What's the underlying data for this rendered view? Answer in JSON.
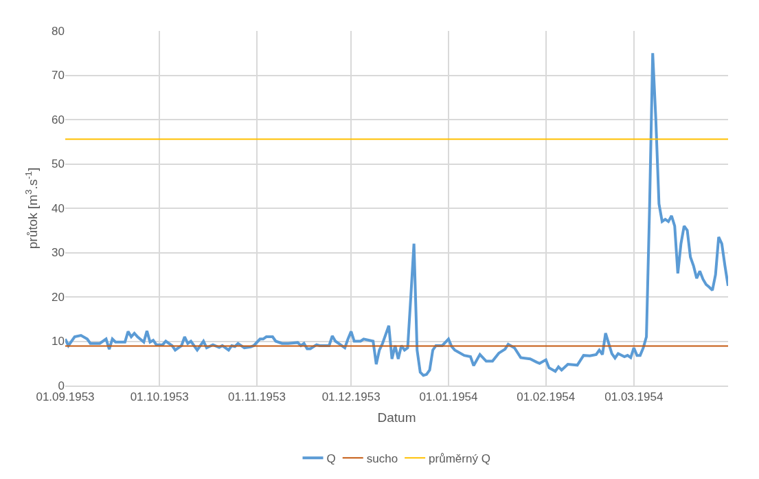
{
  "chart_data": {
    "type": "line",
    "xlabel": "Datum",
    "ylabel": "průtok [m$^{3}$.s$^{-1}$]",
    "xlim": [
      "1953-09-01",
      "1954-03-31"
    ],
    "ylim": [
      0,
      80
    ],
    "yticks": [
      0,
      10,
      20,
      30,
      40,
      50,
      60,
      70,
      80
    ],
    "xticks": [
      {
        "value": "1953-09-01",
        "label": "01.09.1953"
      },
      {
        "value": "1953-10-01",
        "label": "01.10.1953"
      },
      {
        "value": "1953-11-01",
        "label": "01.11.1953"
      },
      {
        "value": "1953-12-01",
        "label": "01.12.1953"
      },
      {
        "value": "1954-01-01",
        "label": "01.01.1954"
      },
      {
        "value": "1954-02-01",
        "label": "01.02.1954"
      },
      {
        "value": "1954-03-01",
        "label": "01.03.1954"
      }
    ],
    "grid": true,
    "legend": "bottom",
    "marker": "none",
    "line_style": "solid",
    "series": [
      {
        "name": "Q",
        "color": "#5b9bd5",
        "x": [
          "1953-09-01",
          "1953-09-02",
          "1953-09-04",
          "1953-09-06",
          "1953-09-08",
          "1953-09-09",
          "1953-09-12",
          "1953-09-14",
          "1953-09-15",
          "1953-09-16",
          "1953-09-17",
          "1953-09-20",
          "1953-09-21",
          "1953-09-22",
          "1953-09-23",
          "1953-09-24",
          "1953-09-26",
          "1953-09-27",
          "1953-09-28",
          "1953-09-29",
          "1953-09-30",
          "1953-10-02",
          "1953-10-03",
          "1953-10-05",
          "1953-10-06",
          "1953-10-08",
          "1953-10-09",
          "1953-10-10",
          "1953-10-11",
          "1953-10-13",
          "1953-10-15",
          "1953-10-16",
          "1953-10-18",
          "1953-10-20",
          "1953-10-21",
          "1953-10-23",
          "1953-10-24",
          "1953-10-25",
          "1953-10-26",
          "1953-10-28",
          "1953-10-30",
          "1953-10-31",
          "1953-11-02",
          "1953-11-03",
          "1953-11-04",
          "1953-11-06",
          "1953-11-07",
          "1953-11-09",
          "1953-11-11",
          "1953-11-14",
          "1953-11-15",
          "1953-11-16",
          "1953-11-17",
          "1953-11-18",
          "1953-11-20",
          "1953-11-21",
          "1953-11-22",
          "1953-11-24",
          "1953-11-25",
          "1953-11-26",
          "1953-11-27",
          "1953-11-29",
          "1953-11-30",
          "1953-12-01",
          "1953-12-02",
          "1953-12-04",
          "1953-12-05",
          "1953-12-08",
          "1953-12-09",
          "1953-12-10",
          "1953-12-11",
          "1953-12-13",
          "1953-12-14",
          "1953-12-15",
          "1953-12-16",
          "1953-12-17",
          "1953-12-18",
          "1953-12-19",
          "1953-12-20",
          "1953-12-21",
          "1953-12-22",
          "1953-12-23",
          "1953-12-24",
          "1953-12-25",
          "1953-12-26",
          "1953-12-27",
          "1953-12-28",
          "1953-12-30",
          "1954-01-01",
          "1954-01-02",
          "1954-01-03",
          "1954-01-06",
          "1954-01-08",
          "1954-01-09",
          "1954-01-11",
          "1954-01-13",
          "1954-01-15",
          "1954-01-17",
          "1954-01-19",
          "1954-01-20",
          "1954-01-22",
          "1954-01-24",
          "1954-01-27",
          "1954-01-29",
          "1954-01-30",
          "1954-02-01",
          "1954-02-02",
          "1954-02-04",
          "1954-02-05",
          "1954-02-06",
          "1954-02-08",
          "1954-02-11",
          "1954-02-13",
          "1954-02-15",
          "1954-02-17",
          "1954-02-18",
          "1954-02-19",
          "1954-02-20",
          "1954-02-22",
          "1954-02-23",
          "1954-02-24",
          "1954-02-26",
          "1954-02-27",
          "1954-02-28",
          "1954-03-01",
          "1954-03-02",
          "1954-03-03",
          "1954-03-04",
          "1954-03-05",
          "1954-03-06",
          "1954-03-07",
          "1954-03-08",
          "1954-03-09",
          "1954-03-10",
          "1954-03-11",
          "1954-03-12",
          "1954-03-13",
          "1954-03-14",
          "1954-03-15",
          "1954-03-16",
          "1954-03-17",
          "1954-03-18",
          "1954-03-19",
          "1954-03-20",
          "1954-03-21",
          "1954-03-22",
          "1954-03-23",
          "1954-03-24",
          "1954-03-25",
          "1954-03-26",
          "1954-03-27",
          "1954-03-28",
          "1954-03-29",
          "1954-03-30",
          "1954-03-31"
        ],
        "values": [
          10.5,
          9,
          11,
          11.3,
          10.5,
          9.5,
          9.5,
          10.5,
          8.2,
          10.5,
          9.8,
          9.8,
          12.2,
          11,
          11.8,
          11,
          9.8,
          12.3,
          9.8,
          10.2,
          9.2,
          9.2,
          10,
          9,
          8,
          9,
          11,
          9.5,
          10,
          8,
          10,
          8.5,
          9.2,
          8.6,
          9,
          8,
          9,
          8.8,
          9.5,
          8.5,
          8.7,
          9,
          10.5,
          10.5,
          11,
          11,
          10,
          9.5,
          9.5,
          9.7,
          9,
          9.5,
          8.3,
          8.3,
          9.2,
          9,
          9,
          9,
          11.2,
          10,
          9.5,
          8.5,
          10.5,
          12.2,
          10,
          10,
          10.5,
          10,
          4.8,
          8,
          9.5,
          13.5,
          6,
          9,
          6,
          9,
          8,
          8.5,
          20,
          32,
          8,
          3,
          2.3,
          2.5,
          3.5,
          8,
          9,
          9,
          10.5,
          8.8,
          8,
          6.8,
          6.5,
          4.5,
          7,
          5.5,
          5.5,
          7.3,
          8.2,
          9.3,
          8.5,
          6.3,
          6,
          5.3,
          5,
          5.8,
          4,
          3.2,
          4.2,
          3.5,
          4.8,
          4.6,
          6.8,
          6.7,
          7,
          8,
          7,
          11.8,
          7.2,
          6.2,
          7.2,
          6.5,
          6.8,
          6.3,
          8.5,
          6.8,
          6.8,
          8.5,
          11,
          40,
          75,
          60,
          41,
          37,
          37.5,
          37,
          38.3,
          36,
          25.3,
          32,
          36,
          35,
          29,
          27,
          24.2,
          25.8,
          24,
          22.8,
          22.2,
          21.5,
          25,
          33.5,
          32,
          27,
          22.5
        ]
      },
      {
        "name": "sucho",
        "color": "#c55a11",
        "x": [
          "1953-09-01",
          "1954-03-31"
        ],
        "values": [
          8.9,
          8.9
        ]
      },
      {
        "name": "průměrný Q",
        "color": "#ffc000",
        "x": [
          "1953-09-01",
          "1954-03-31"
        ],
        "values": [
          55.6,
          55.6
        ]
      }
    ]
  }
}
